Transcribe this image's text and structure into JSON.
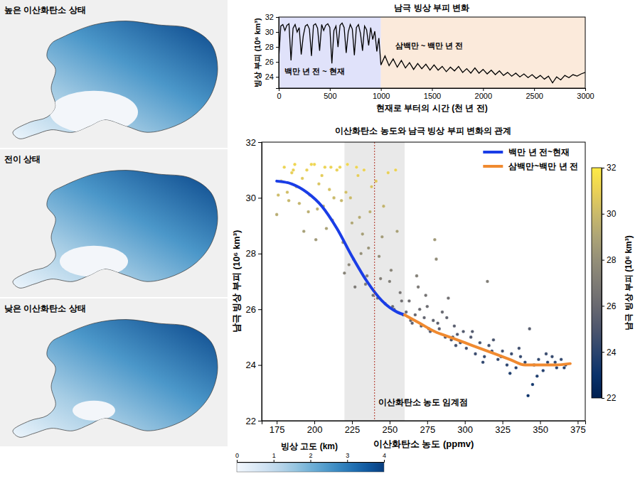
{
  "maps": {
    "panels": [
      {
        "title": "높은 이산화탄소 상태"
      },
      {
        "title": "전이 상태"
      },
      {
        "title": "낮은 이산화탄소 상태"
      }
    ],
    "colorbar": {
      "title": "빙상 고도 (km)",
      "range": [
        0,
        4
      ],
      "ticks": [
        0,
        1,
        2,
        3,
        4
      ]
    }
  },
  "chart_data": [
    {
      "type": "line",
      "title": "남극 빙상 부피 변화",
      "x_label": "현재로 부터의 시간 (천 년 전)",
      "y_label": "빙상 부피 (10⁶ km³)",
      "xlim": [
        0,
        3000
      ],
      "xticks": [
        0,
        500,
        1000,
        1500,
        2000,
        2500,
        3000
      ],
      "ylim": [
        22.5,
        32
      ],
      "yticks": [
        24,
        26,
        28,
        30,
        32
      ],
      "regions": [
        {
          "name": "백만 년 전 ~ 현재",
          "x": [
            0,
            1000
          ],
          "color": "#e0e2fa"
        },
        {
          "name": "삼백만 ~ 백만 년 전",
          "x": [
            1000,
            3000
          ],
          "color": "#fbeadb"
        }
      ],
      "series": [
        {
          "color": "#000000",
          "x": [
            0,
            20,
            40,
            60,
            80,
            100,
            120,
            140,
            160,
            180,
            200,
            220,
            240,
            260,
            280,
            300,
            320,
            340,
            360,
            380,
            400,
            420,
            440,
            460,
            480,
            500,
            520,
            540,
            560,
            580,
            600,
            620,
            640,
            660,
            680,
            700,
            720,
            740,
            760,
            780,
            800,
            820,
            840,
            860,
            880,
            900,
            920,
            940,
            960,
            980,
            1000,
            1040,
            1080,
            1120,
            1160,
            1200,
            1240,
            1280,
            1320,
            1360,
            1400,
            1440,
            1480,
            1520,
            1560,
            1600,
            1640,
            1680,
            1720,
            1760,
            1800,
            1840,
            1880,
            1920,
            1960,
            2000,
            2040,
            2080,
            2120,
            2160,
            2200,
            2240,
            2280,
            2320,
            2360,
            2400,
            2440,
            2480,
            2520,
            2560,
            2600,
            2640,
            2680,
            2720,
            2760,
            2800,
            2840,
            2880,
            2920,
            2960,
            3000
          ],
          "values": [
            26.5,
            30.8,
            31.0,
            30.2,
            30.9,
            31.1,
            26.2,
            30.5,
            31.0,
            30.0,
            30.6,
            27.0,
            29.5,
            30.8,
            31.0,
            30.4,
            26.8,
            30.9,
            31.1,
            30.5,
            27.5,
            31.0,
            30.2,
            30.9,
            31.1,
            30.6,
            25.8,
            30.2,
            30.8,
            28.0,
            30.9,
            31.2,
            30.6,
            27.2,
            30.0,
            31.0,
            30.4,
            26.9,
            30.6,
            31.0,
            29.8,
            27.5,
            30.8,
            30.3,
            28.2,
            30.6,
            29.0,
            30.1,
            27.4,
            29.2,
            25.6,
            26.8,
            25.5,
            26.4,
            25.3,
            26.2,
            25.2,
            25.9,
            25.0,
            25.8,
            25.1,
            25.7,
            24.9,
            25.6,
            24.9,
            25.4,
            24.7,
            25.3,
            24.8,
            25.4,
            24.6,
            25.1,
            24.5,
            25.2,
            24.5,
            25.0,
            24.4,
            24.9,
            24.3,
            24.8,
            24.2,
            24.6,
            24.1,
            24.5,
            24.0,
            24.4,
            23.9,
            24.3,
            23.8,
            24.2,
            23.7,
            24.1,
            23.2,
            24.0,
            23.6,
            24.2,
            23.9,
            24.3,
            24.1,
            24.4,
            24.6
          ]
        }
      ]
    },
    {
      "type": "scatter",
      "title": "이산화탄소 농도와 남극 빙상 부피 변화의 관계",
      "x_label": "이산화탄소 농도 (ppmv)",
      "y_label": "남극 빙상 부피 (10⁶ km³)",
      "xlim": [
        165,
        380
      ],
      "xticks": [
        175,
        200,
        225,
        250,
        275,
        300,
        325,
        350,
        375
      ],
      "ylim": [
        22,
        32
      ],
      "yticks": [
        22,
        24,
        26,
        28,
        30,
        32
      ],
      "legend": "top-right",
      "threshold": {
        "label": "이산화탄소 농도 임계점",
        "value": 240,
        "band": [
          220,
          260
        ]
      },
      "colorbar": {
        "title": "남극 빙상 부피 (10⁶ km³)",
        "range": [
          22,
          32
        ],
        "ticks": [
          22,
          24,
          26,
          28,
          30,
          32
        ]
      },
      "series": [
        {
          "type": "scatter",
          "x": [
            175,
            178,
            180,
            182,
            185,
            187,
            190,
            192,
            195,
            197,
            200,
            202,
            205,
            207,
            210,
            212,
            215,
            183,
            188,
            193,
            198,
            203,
            208,
            213,
            186,
            196,
            206,
            211,
            176,
            201,
            217,
            219,
            221,
            223,
            225,
            227,
            229,
            231,
            233,
            235,
            237,
            239,
            241,
            243,
            245,
            247,
            249,
            251,
            253,
            255,
            257,
            259,
            218,
            222,
            226,
            230,
            234,
            238,
            242,
            246,
            250,
            254,
            258,
            220,
            228,
            236,
            244,
            252,
            224,
            232,
            261,
            263,
            265,
            267,
            269,
            271,
            273,
            275,
            277,
            279,
            281,
            283,
            285,
            287,
            289,
            291,
            293,
            295,
            297,
            299,
            264,
            270,
            276,
            282,
            288,
            294,
            268,
            280,
            292,
            274,
            301,
            304,
            307,
            310,
            313,
            316,
            319,
            322,
            325,
            328,
            331,
            334,
            337,
            340,
            343,
            346,
            349,
            352,
            355,
            358,
            361,
            364,
            367,
            305,
            312,
            318,
            324,
            330,
            336,
            342,
            348,
            354,
            360,
            366,
            315,
            345
          ],
          "values": [
            29.4,
            30.6,
            31.1,
            30.2,
            30.9,
            31.2,
            29.8,
            30.7,
            31.0,
            30.1,
            31.2,
            29.6,
            30.8,
            31.1,
            30.3,
            29.2,
            31.0,
            29.9,
            30.4,
            28.8,
            31.2,
            30.5,
            28.9,
            30.0,
            31.0,
            29.5,
            29.7,
            31.1,
            30.1,
            28.5,
            31.1,
            28.4,
            30.2,
            27.6,
            29.1,
            26.8,
            30.8,
            28.0,
            31.0,
            27.2,
            29.5,
            26.5,
            30.6,
            27.9,
            28.6,
            26.2,
            30.9,
            27.4,
            26.0,
            28.8,
            26.6,
            25.8,
            29.9,
            31.2,
            27.8,
            29.3,
            26.9,
            30.4,
            26.4,
            29.7,
            27.0,
            31.0,
            26.3,
            27.3,
            31.1,
            28.2,
            27.1,
            26.1,
            30.0,
            28.7,
            25.9,
            26.3,
            25.5,
            25.8,
            26.8,
            25.4,
            25.7,
            26.1,
            25.2,
            25.6,
            27.8,
            25.3,
            25.9,
            25.0,
            26.4,
            24.9,
            25.4,
            25.1,
            24.8,
            25.2,
            25.6,
            26.0,
            25.3,
            25.5,
            25.7,
            24.7,
            27.2,
            28.5,
            25.0,
            26.5,
            24.6,
            25.0,
            24.4,
            24.8,
            24.3,
            24.7,
            24.9,
            24.2,
            24.5,
            24.0,
            24.4,
            23.9,
            24.3,
            24.1,
            25.3,
            24.0,
            24.2,
            23.8,
            24.1,
            24.3,
            23.9,
            24.2,
            24.0,
            25.2,
            24.1,
            24.5,
            24.3,
            23.7,
            24.6,
            22.9,
            23.6,
            24.4,
            24.1,
            23.9,
            27.0,
            23.3
          ]
        },
        {
          "name": "백만 년 전~현재",
          "type": "line",
          "color": "#1a3de6",
          "x": [
            175,
            185,
            195,
            205,
            215,
            225,
            235,
            245,
            255,
            260
          ],
          "values": [
            30.6,
            30.5,
            30.2,
            29.7,
            28.9,
            27.9,
            27.0,
            26.3,
            25.9,
            25.8
          ]
        },
        {
          "name": "삼백만~백만 년 전",
          "type": "line",
          "color": "#f08a30",
          "x": [
            260,
            270,
            280,
            290,
            300,
            310,
            320,
            330,
            340,
            350,
            360,
            370
          ],
          "values": [
            25.8,
            25.5,
            25.2,
            25.0,
            24.8,
            24.6,
            24.4,
            24.2,
            24.0,
            24.0,
            24.0,
            24.05
          ]
        }
      ]
    }
  ]
}
